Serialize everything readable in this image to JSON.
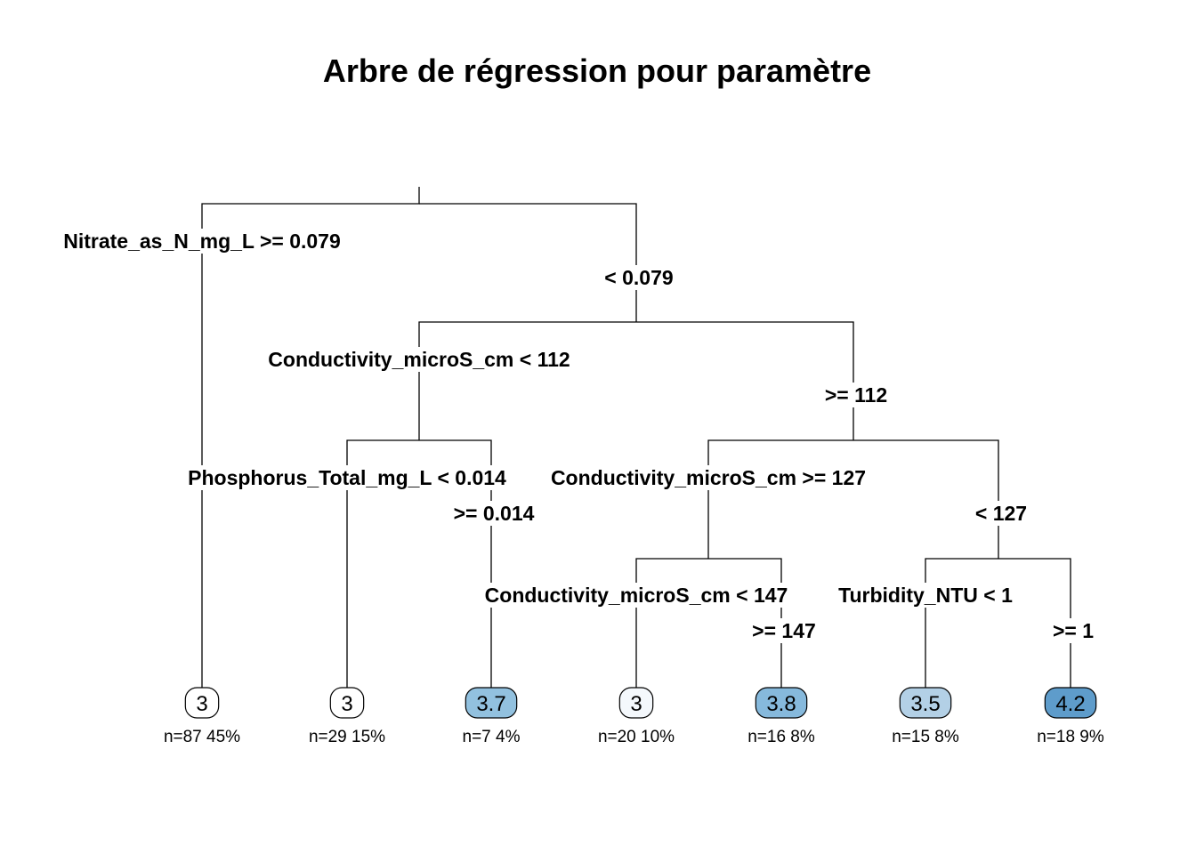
{
  "title": "Arbre de régression pour paramètre",
  "splits": [
    {
      "id": "root",
      "left": "Nitrate_as_N_mg_L >= 0.079",
      "right": "< 0.079"
    },
    {
      "id": "cond1",
      "left": "Conductivity_microS_cm < 112",
      "right": ">= 112"
    },
    {
      "id": "phos",
      "left": "Phosphorus_Total_mg_L < 0.014",
      "right": ">= 0.014"
    },
    {
      "id": "cond2",
      "left": "Conductivity_microS_cm >= 127",
      "right": "< 127"
    },
    {
      "id": "cond3",
      "left": "Conductivity_microS_cm < 147",
      "right": ">= 147"
    },
    {
      "id": "turb",
      "left": "Turbidity_NTU < 1",
      "right": ">= 1"
    }
  ],
  "leaves": [
    {
      "value": "3",
      "n": "n=87",
      "pct": "45%",
      "fill": "#ffffff"
    },
    {
      "value": "3",
      "n": "n=29",
      "pct": "15%",
      "fill": "#ffffff"
    },
    {
      "value": "3.7",
      "n": "n=7",
      "pct": "4%",
      "fill": "#92c1df"
    },
    {
      "value": "3",
      "n": "n=20",
      "pct": "10%",
      "fill": "#f4f8fc"
    },
    {
      "value": "3.8",
      "n": "n=16",
      "pct": "8%",
      "fill": "#86b9dc"
    },
    {
      "value": "3.5",
      "n": "n=15",
      "pct": "8%",
      "fill": "#b3d0e6"
    },
    {
      "value": "4.2",
      "n": "n=18",
      "pct": "9%",
      "fill": "#5e9ccb"
    }
  ]
}
